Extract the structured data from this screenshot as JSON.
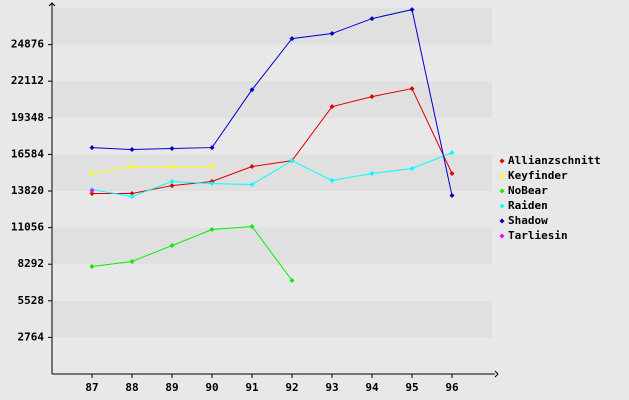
{
  "chart_data": {
    "type": "line",
    "categories": [
      "87",
      "88",
      "89",
      "90",
      "91",
      "92",
      "93",
      "94",
      "95",
      "96"
    ],
    "series": [
      {
        "name": "Allianzschnitt",
        "color": "#dd0000",
        "values": [
          13630,
          13630,
          14230,
          14540,
          15670,
          16110,
          20190,
          20950,
          21550,
          15140
        ]
      },
      {
        "name": "Keyfinder",
        "color": "#ffff00",
        "values": [
          15140,
          15670,
          15670,
          15670,
          null,
          null,
          null,
          null,
          null,
          null
        ]
      },
      {
        "name": "NoBear",
        "color": "#00ee00",
        "values": [
          8120,
          8500,
          9700,
          10910,
          11140,
          7060,
          null,
          null,
          null,
          null
        ]
      },
      {
        "name": "Raiden",
        "color": "#00ffff",
        "values": [
          13930,
          13400,
          14540,
          14380,
          14310,
          16110,
          14610,
          15140,
          15520,
          16720
        ]
      },
      {
        "name": "Shadow",
        "color": "#0000cc",
        "values": [
          17100,
          16950,
          17030,
          17100,
          21470,
          25330,
          25710,
          26840,
          27520,
          13480
        ]
      },
      {
        "name": "Tarliesin",
        "color": "#ff00ff",
        "values": [
          13850,
          null,
          null,
          null,
          null,
          null,
          null,
          null,
          null,
          null
        ]
      }
    ],
    "ylim": [
      0,
      27640
    ],
    "yticks": [
      2764,
      5528,
      8292,
      11056,
      13820,
      16584,
      19348,
      22112,
      24876
    ],
    "grid": true,
    "legend": "right"
  }
}
